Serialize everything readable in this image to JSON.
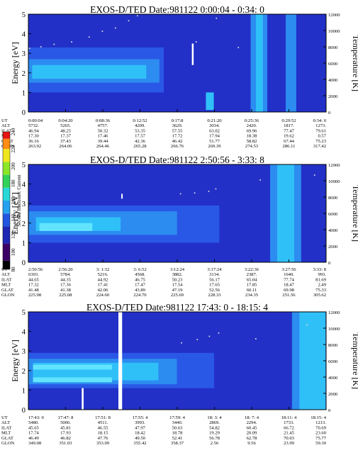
{
  "chart_data": [
    {
      "type": "heatmap",
      "title": "EXOS-D/TED   Date:981122  0:00:04 - 0:34: 0",
      "ylabel": "Energy [eV]",
      "y2label": "Temperature [K]",
      "yticks": [
        "0",
        "1",
        "2",
        "3",
        "4",
        "5"
      ],
      "y2ticks": [
        "0",
        "2000",
        "4000",
        "6000",
        "8000",
        "10000",
        "12000"
      ],
      "ylim": [
        0,
        5
      ],
      "y2lim": [
        0,
        12000
      ],
      "x_start_min": 0.0667,
      "x_end_min": 34.0,
      "bands": [
        {
          "start_min": 0.07,
          "end_min": 15.5,
          "emin": 1.0,
          "emax": 3.3,
          "level": 1
        },
        {
          "start_min": 0.07,
          "end_min": 15.0,
          "emin": 1.5,
          "emax": 2.7,
          "level": 2
        },
        {
          "start_min": 0.5,
          "end_min": 13.5,
          "emin": 1.7,
          "emax": 2.4,
          "level": 3
        },
        {
          "start_min": 20.3,
          "end_min": 21.2,
          "emin": 0.1,
          "emax": 1.0,
          "level": 3
        },
        {
          "start_min": 26.0,
          "end_min": 26.8,
          "emin": 0.0,
          "emax": 5.0,
          "level": 3
        },
        {
          "start_min": 25.4,
          "end_min": 27.3,
          "emin": 0.0,
          "emax": 5.0,
          "level": 2
        },
        {
          "start_min": 29.4,
          "end_min": 30.6,
          "emin": 0.0,
          "emax": 5.0,
          "level": 2
        }
      ],
      "gaps": [
        {
          "start_min": 18.7,
          "end_min": 18.9,
          "emin": 2.4,
          "emax": 3.5
        }
      ],
      "temperature": [
        {
          "t": 0.2,
          "k": 7800
        },
        {
          "t": 1.5,
          "k": 8000
        },
        {
          "t": 3,
          "k": 8300
        },
        {
          "t": 5,
          "k": 8600
        },
        {
          "t": 7,
          "k": 9200
        },
        {
          "t": 8.5,
          "k": 9900
        },
        {
          "t": 10,
          "k": 10300
        },
        {
          "t": 11.5,
          "k": 11200
        },
        {
          "t": 12.5,
          "k": 11800
        },
        {
          "t": 19.2,
          "k": 8600
        },
        {
          "t": 21.5,
          "k": 11500
        },
        {
          "t": 24,
          "k": 7900
        }
      ],
      "ephemeris": {
        "rows": [
          "UT",
          "ALT",
          "ILAT",
          "MLT",
          "GLAT",
          "GLON"
        ],
        "UT": [
          "0:00:04",
          "0:04:20",
          "0:08:36",
          "0:12:52",
          "0:17:8",
          "0:21:20",
          "0:25:36",
          "0:29:52",
          "0:34: 0"
        ],
        "ALT": [
          "5732.",
          "5265.",
          "4757.",
          "4209.",
          "3629.",
          "3034.",
          "2420.",
          "1817.",
          "1273."
        ],
        "ILAT": [
          "46.94",
          "48.25",
          "50.32",
          "53.35",
          "57.55",
          "63.02",
          "69.96",
          "77.47",
          "79.61"
        ],
        "MLT": [
          "17.30",
          "17.37",
          "17.46",
          "17.57",
          "17.72",
          "17.94",
          "18.38",
          "19.62",
          "0.57"
        ],
        "GLAT": [
          "36.16",
          "37.43",
          "39.44",
          "42.36",
          "46.42",
          "51.77",
          "58.82",
          "67.44",
          "75.23"
        ],
        "GLON": [
          "263.92",
          "264.06",
          "264.46",
          "265.28",
          "266.76",
          "269.39",
          "274.53",
          "286.11",
          "317.42"
        ]
      }
    },
    {
      "type": "heatmap",
      "title": "EXOS-D/TED   Date:981122  2:50:56 - 3:33: 8",
      "ylabel": "Energy [eV]",
      "y2label": "Temperature [K]",
      "yticks": [
        "0",
        "1",
        "2",
        "3",
        "4",
        "5"
      ],
      "y2ticks": [
        "0",
        "2000",
        "4000",
        "6000",
        "8000",
        "10000",
        "12000"
      ],
      "ylim": [
        0,
        5
      ],
      "y2lim": [
        0,
        12000
      ],
      "x_start_min": 170.93,
      "x_end_min": 213.13,
      "bands": [
        {
          "start_min": 171.0,
          "end_min": 198.0,
          "emin": 1.0,
          "emax": 2.9,
          "level": 1
        },
        {
          "start_min": 171.0,
          "end_min": 192.0,
          "emin": 1.4,
          "emax": 2.6,
          "level": 2
        },
        {
          "start_min": 172.0,
          "end_min": 184.0,
          "emin": 1.6,
          "emax": 2.3,
          "level": 3
        },
        {
          "start_min": 172.5,
          "end_min": 180.0,
          "emin": 1.6,
          "emax": 2.0,
          "level": 4
        },
        {
          "start_min": 206.2,
          "end_min": 208.6,
          "emin": 0.0,
          "emax": 5.0,
          "level": 3
        },
        {
          "start_min": 205.2,
          "end_min": 209.6,
          "emin": 0.0,
          "emax": 5.0,
          "level": 2
        }
      ],
      "gaps": [
        {
          "start_min": 184.1,
          "end_min": 184.3,
          "emin": 3.25,
          "emax": 3.5
        }
      ],
      "temperature": [
        {
          "t": 192.5,
          "k": 8400
        },
        {
          "t": 194.5,
          "k": 8500
        },
        {
          "t": 196.5,
          "k": 8700
        },
        {
          "t": 197.5,
          "k": 9000
        },
        {
          "t": 203.8,
          "k": 10100
        },
        {
          "t": 211.5,
          "k": 10700
        }
      ],
      "ephemeris": {
        "rows": [
          "UT",
          "ALT",
          "ILAT",
          "MLT",
          "GLAT",
          "GLON"
        ],
        "UT": [
          "2:50:56",
          "2:56:20",
          "3: 1:32",
          "3: 6:52",
          "3:12:24",
          "3:17:24",
          "3:22:36",
          "3:27:56",
          "3:33: 8"
        ],
        "ALT": [
          "6303.",
          "5784.",
          "5216.",
          "4568.",
          "3882.",
          "3134.",
          "2387.",
          "1640.",
          "993."
        ],
        "ILAT": [
          "44.65",
          "44.35",
          "44.92",
          "46.75",
          "50.23",
          "56.17",
          "65.04",
          "77.74",
          "81.69"
        ],
        "MLT": [
          "17.32",
          "17.36",
          "17.41",
          "17.47",
          "17.54",
          "17.65",
          "17.85",
          "18.47",
          "2.49"
        ],
        "GLAT": [
          "41.48",
          "41.38",
          "42.06",
          "43.89",
          "47.19",
          "52.56",
          "60.11",
          "69.98",
          "75.33"
        ],
        "GLON": [
          "225.98",
          "225.08",
          "224.60",
          "224.70",
          "225.69",
          "228.33",
          "234.35",
          "251.56",
          "305.62"
        ]
      }
    },
    {
      "type": "heatmap",
      "title": "EXOS-D/TED   Date:981122  17:43: 0 - 18:15: 4",
      "ylabel": "Energy [eV]",
      "y2label": "Temperature [K]",
      "yticks": [
        "0",
        "1",
        "2",
        "3",
        "4",
        "5"
      ],
      "y2ticks": [
        "0",
        "2000",
        "4000",
        "6000",
        "8000",
        "10000",
        "12000"
      ],
      "ylim": [
        0,
        5
      ],
      "y2lim": [
        0,
        12000
      ],
      "x_start_min": 1063.0,
      "x_end_min": 1095.07,
      "bands": [
        {
          "start_min": 1063.0,
          "end_min": 1083.0,
          "emin": 1.1,
          "emax": 2.9,
          "level": 1
        },
        {
          "start_min": 1063.0,
          "end_min": 1079.0,
          "emin": 1.3,
          "emax": 2.6,
          "level": 2
        },
        {
          "start_min": 1063.5,
          "end_min": 1077.0,
          "emin": 1.5,
          "emax": 2.4,
          "level": 3
        },
        {
          "start_min": 1063.5,
          "end_min": 1072.0,
          "emin": 2.05,
          "emax": 2.3,
          "level": 4
        },
        {
          "start_min": 1063.5,
          "end_min": 1072.0,
          "emin": 1.4,
          "emax": 1.65,
          "level": 4
        },
        {
          "start_min": 1092.2,
          "end_min": 1095.0,
          "emin": 0.0,
          "emax": 5.0,
          "level": 3
        },
        {
          "start_min": 1091.4,
          "end_min": 1095.07,
          "emin": 0.0,
          "emax": 5.0,
          "level": 2
        }
      ],
      "gaps": [
        {
          "start_min": 1072.7,
          "end_min": 1073.1,
          "emin": 0.0,
          "emax": 5.0
        },
        {
          "start_min": 1068.75,
          "end_min": 1068.95,
          "emin": 0.0,
          "emax": 1.1
        }
      ],
      "temperature": [
        {
          "t": 1079.5,
          "k": 8200
        },
        {
          "t": 1081.2,
          "k": 8600
        },
        {
          "t": 1082.5,
          "k": 9000
        },
        {
          "t": 1083.5,
          "k": 9400
        },
        {
          "t": 1087.5,
          "k": 8700
        },
        {
          "t": 1093,
          "k": 10400
        }
      ],
      "ephemeris": {
        "rows": [
          "UT",
          "ALT",
          "ILAT",
          "MLT",
          "GLAT",
          "GLON"
        ],
        "UT": [
          "17:43: 0",
          "17:47: 8",
          "17:51: 8",
          "17:55: 4",
          "17:59: 4",
          "18: 3: 4",
          "18: 7: 4",
          "18:11: 4",
          "18:15: 4"
        ],
        "ALT": [
          "5480.",
          "5006.",
          "4511.",
          "3993.",
          "3440.",
          "2869.",
          "2294.",
          "1733.",
          "1213."
        ],
        "ILAT": [
          "45.65",
          "45.81",
          "46.55",
          "47.97",
          "50.63",
          "54.82",
          "60.45",
          "66.72",
          "70.69"
        ],
        "MLT": [
          "17.74",
          "17.93",
          "18.15",
          "18.42",
          "18.78",
          "19.29",
          "20.09",
          "21.45",
          "23.60"
        ],
        "GLAT": [
          "46.49",
          "46.82",
          "47.76",
          "49.50",
          "52.41",
          "56.78",
          "62.78",
          "70.03",
          "75.77"
        ],
        "GLON": [
          "349.08",
          "351.03",
          "353.09",
          "355.42",
          "358.37",
          "2.56",
          "9.56",
          "23.99",
          "59.30"
        ]
      }
    }
  ],
  "colorbar": {
    "label": "Second Harmonic Current",
    "ticks": [
      "80",
      "100",
      "120",
      "140",
      "160",
      "180",
      "200",
      "220",
      "240"
    ],
    "levels": [
      {
        "from": 80,
        "to": 90,
        "color": "#000000"
      },
      {
        "from": 90,
        "to": 110,
        "color": "#3a0066"
      },
      {
        "from": 110,
        "to": 130,
        "color": "#1e26b4"
      },
      {
        "from": 130,
        "to": 145,
        "color": "#2255e0"
      },
      {
        "from": 145,
        "to": 160,
        "color": "#24a2f0"
      },
      {
        "from": 160,
        "to": 175,
        "color": "#28d8d8"
      },
      {
        "from": 175,
        "to": 190,
        "color": "#32d25a"
      },
      {
        "from": 190,
        "to": 205,
        "color": "#8ce628"
      },
      {
        "from": 205,
        "to": 220,
        "color": "#f0e61e"
      },
      {
        "from": 220,
        "to": 232,
        "color": "#ff8c14"
      },
      {
        "from": 232,
        "to": 240,
        "color": "#e61414"
      }
    ]
  },
  "colors": {
    "background_level": "#2230c8",
    "level_1": "#2a58e6",
    "level_2": "#2c8cf0",
    "level_3": "#30c0f8",
    "level_4": "#62e4ff",
    "temperature_dots": "#d8d8d8"
  }
}
